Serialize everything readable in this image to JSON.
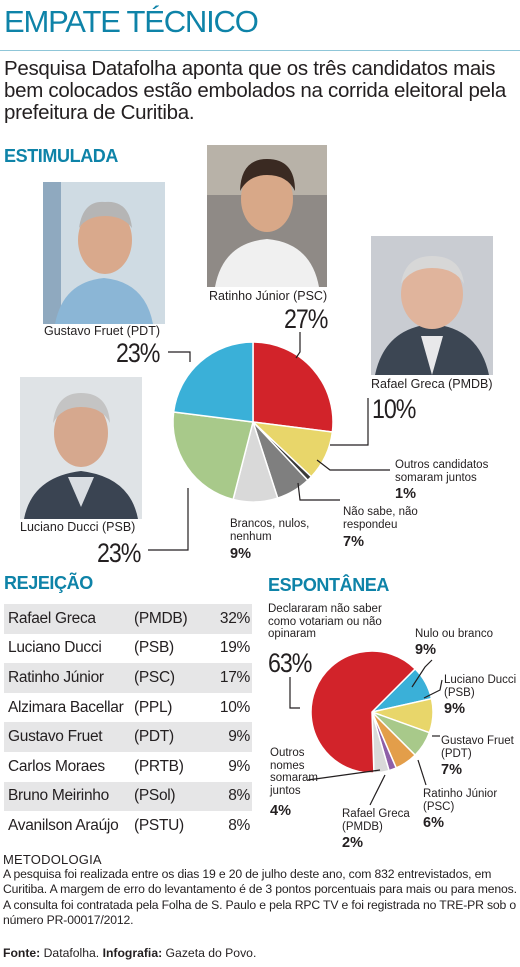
{
  "header": {
    "title": "EMPATE TÉCNICO",
    "subtitle": "Pesquisa Datafolha aponta que os três candidatos mais bem colocados estão embolados na corrida eleitoral pela prefeitura de Curitiba."
  },
  "colors": {
    "accent": "#0e83a8",
    "red": "#d2232a",
    "yellow": "#e8d66a",
    "green": "#a8c98a",
    "blue": "#3ab0d8",
    "grey_light": "#d9d9d9",
    "grey_dark": "#7f7f7f",
    "purple": "#8e5fa8",
    "orange": "#e39e4a"
  },
  "stimulated": {
    "section_title": "ESTIMULADA",
    "candidates": {
      "fruet": {
        "name": "Gustavo Fruet (PDT)",
        "pct": "23%"
      },
      "ratinho": {
        "name": "Ratinho Júnior (PSC)",
        "pct": "27%"
      },
      "greca": {
        "name": "Rafael Greca (PMDB)",
        "pct": "10%"
      },
      "ducci": {
        "name": "Luciano Ducci (PSB)",
        "pct": "23%"
      },
      "outros": {
        "label": "Outros candidatos somaram juntos",
        "pct": "1%"
      },
      "naosabe": {
        "label": "Não sabe, não respondeu",
        "pct": "7%"
      },
      "brancos": {
        "label": "Brancos, nulos, nenhum",
        "pct": "9%"
      }
    }
  },
  "rejection": {
    "section_title": "REJEIÇÃO",
    "rows": [
      {
        "name": "Rafael Greca",
        "party": "(PMDB)",
        "pct": "32%"
      },
      {
        "name": "Luciano Ducci",
        "party": "(PSB)",
        "pct": "19%"
      },
      {
        "name": "Ratinho Júnior",
        "party": "(PSC)",
        "pct": "17%"
      },
      {
        "name": "Alzimara Bacellar",
        "party": "(PPL)",
        "pct": "10%"
      },
      {
        "name": "Gustavo Fruet",
        "party": "(PDT)",
        "pct": "9%"
      },
      {
        "name": "Carlos Moraes",
        "party": "(PRTB)",
        "pct": "9%"
      },
      {
        "name": "Bruno Meirinho",
        "party": "(PSol)",
        "pct": "8%"
      },
      {
        "name": "Avanilson Araújo",
        "party": "(PSTU)",
        "pct": "8%"
      }
    ]
  },
  "spontaneous": {
    "section_title": "ESPONTÂNEA",
    "labels": {
      "naosabe": {
        "label": "Declararam não saber como votariam ou não opinaram",
        "pct": "63%"
      },
      "nulo": {
        "label": "Nulo ou branco",
        "pct": "9%"
      },
      "ducci": {
        "label": "Luciano Ducci (PSB)",
        "pct": "9%"
      },
      "fruet": {
        "label": "Gustavo Fruet (PDT)",
        "pct": "7%"
      },
      "ratinho": {
        "label": "Ratinho Júnior (PSC)",
        "pct": "6%"
      },
      "greca": {
        "label": "Rafael Greca (PMDB)",
        "pct": "2%"
      },
      "outros": {
        "label": "Outros nomes somaram juntos",
        "pct": "4%"
      }
    }
  },
  "chart_data": [
    {
      "type": "pie",
      "title": "ESTIMULADA",
      "categories": [
        "Ratinho Júnior (PSC)",
        "Rafael Greca (PMDB)",
        "Outros candidatos",
        "Não sabe, não respondeu",
        "Brancos, nulos, nenhum",
        "Luciano Ducci (PSB)",
        "Gustavo Fruet (PDT)"
      ],
      "values": [
        27,
        10,
        1,
        7,
        9,
        23,
        23
      ],
      "colors": [
        "#d2232a",
        "#e8d66a",
        "#3a3a3a",
        "#7f7f7f",
        "#d9d9d9",
        "#a8c98a",
        "#3ab0d8"
      ]
    },
    {
      "type": "pie",
      "title": "ESPONTÂNEA",
      "categories": [
        "Nulo ou branco",
        "Luciano Ducci (PSB)",
        "Gustavo Fruet (PDT)",
        "Ratinho Júnior (PSC)",
        "Rafael Greca (PMDB)",
        "Outros nomes",
        "Não sabe / não opinaram"
      ],
      "values": [
        9,
        9,
        7,
        6,
        2,
        4,
        63
      ],
      "colors": [
        "#3ab0d8",
        "#e8d66a",
        "#a8c98a",
        "#e39e4a",
        "#8e5fa8",
        "#d9d9d9",
        "#d2232a"
      ]
    }
  ],
  "methodology": {
    "title": "METODOLOGIA",
    "text": "A pesquisa foi realizada entre os dias 19 e 20 de julho deste ano, com 832 entrevistados, em Curitiba. A margem de erro do levantamento é de 3 pontos porcentuais para mais ou para menos. A consulta foi contratada pela Folha de S. Paulo e pela RPC TV e foi registrada no TRE-PR sob o número PR-00017/2012."
  },
  "source": {
    "fonte_label": "Fonte:",
    "fonte_value": " Datafolha. ",
    "infografia_label": "Infografia:",
    "infografia_value": " Gazeta do Povo."
  }
}
